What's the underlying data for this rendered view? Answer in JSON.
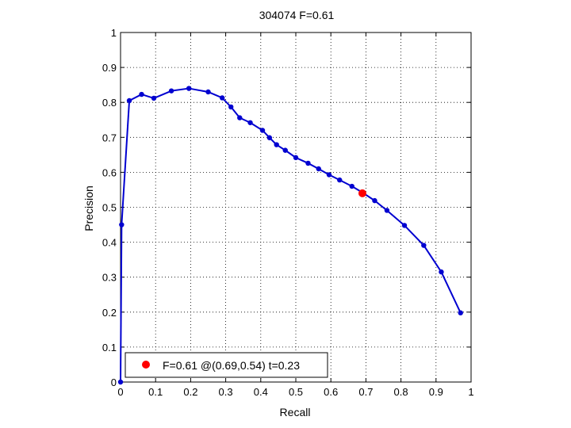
{
  "chart_data": {
    "type": "line",
    "title": "304074 F=0.61",
    "xlabel": "Recall",
    "ylabel": "Precision",
    "xlim": [
      0,
      1
    ],
    "ylim": [
      0,
      1
    ],
    "grid": true,
    "xticks": [
      "0",
      "0.1",
      "0.2",
      "0.3",
      "0.4",
      "0.5",
      "0.6",
      "0.7",
      "0.8",
      "0.9",
      "1"
    ],
    "yticks": [
      "0",
      "0.1",
      "0.2",
      "0.3",
      "0.4",
      "0.5",
      "0.6",
      "0.7",
      "0.8",
      "0.9",
      "1"
    ],
    "series": [
      {
        "color": "#0000d0",
        "points": [
          [
            0.0,
            0.0
          ],
          [
            0.003,
            0.45
          ],
          [
            0.025,
            0.805
          ],
          [
            0.06,
            0.823
          ],
          [
            0.095,
            0.812
          ],
          [
            0.145,
            0.833
          ],
          [
            0.195,
            0.84
          ],
          [
            0.25,
            0.83
          ],
          [
            0.29,
            0.813
          ],
          [
            0.315,
            0.787
          ],
          [
            0.34,
            0.756
          ],
          [
            0.37,
            0.742
          ],
          [
            0.405,
            0.72
          ],
          [
            0.425,
            0.699
          ],
          [
            0.445,
            0.679
          ],
          [
            0.47,
            0.663
          ],
          [
            0.5,
            0.642
          ],
          [
            0.535,
            0.626
          ],
          [
            0.565,
            0.61
          ],
          [
            0.595,
            0.593
          ],
          [
            0.625,
            0.578
          ],
          [
            0.66,
            0.56
          ],
          [
            0.692,
            0.541
          ],
          [
            0.725,
            0.519
          ],
          [
            0.76,
            0.491
          ],
          [
            0.81,
            0.448
          ],
          [
            0.865,
            0.391
          ],
          [
            0.915,
            0.315
          ],
          [
            0.97,
            0.198
          ]
        ]
      }
    ],
    "highlight": {
      "x": 0.69,
      "y": 0.54,
      "color": "#ff0000"
    },
    "legend": {
      "text": "F=0.61 @(0.69,0.54) t=0.23",
      "placement": "bottom-left"
    }
  }
}
